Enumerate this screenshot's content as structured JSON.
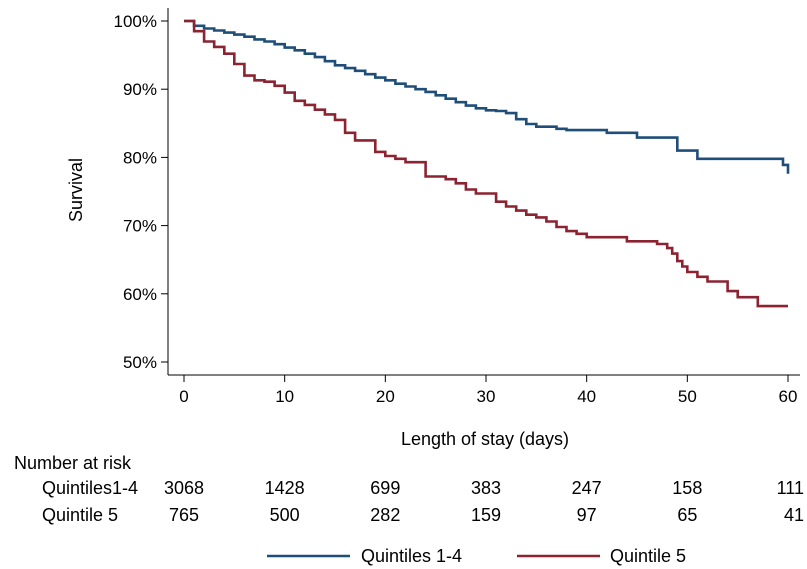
{
  "chart_data": {
    "type": "line",
    "xlabel": "Length of stay (days)",
    "ylabel": "Survival",
    "xlim": [
      0,
      60
    ],
    "ylim": [
      0.5,
      1.0
    ],
    "x_ticks": [
      0,
      10,
      20,
      30,
      40,
      50,
      60
    ],
    "x_tick_labels": [
      "0",
      "10",
      "20",
      "30",
      "40",
      "50",
      "60"
    ],
    "y_ticks": [
      0.5,
      0.6,
      0.7,
      0.8,
      0.9,
      1.0
    ],
    "y_tick_labels": [
      "50%",
      "60%",
      "70%",
      "80%",
      "90%",
      "100%"
    ],
    "grid": false,
    "legend_position": "bottom",
    "series": [
      {
        "name": "Quintiles 1-4",
        "color": "#1f4e79",
        "step": true,
        "points": [
          [
            0,
            1.0
          ],
          [
            1,
            0.993
          ],
          [
            2,
            0.989
          ],
          [
            3,
            0.986
          ],
          [
            4,
            0.983
          ],
          [
            5,
            0.98
          ],
          [
            6,
            0.977
          ],
          [
            7,
            0.973
          ],
          [
            8,
            0.97
          ],
          [
            9,
            0.966
          ],
          [
            10,
            0.961
          ],
          [
            11,
            0.957
          ],
          [
            12,
            0.952
          ],
          [
            13,
            0.947
          ],
          [
            14,
            0.941
          ],
          [
            15,
            0.935
          ],
          [
            16,
            0.931
          ],
          [
            17,
            0.927
          ],
          [
            18,
            0.922
          ],
          [
            19,
            0.917
          ],
          [
            20,
            0.913
          ],
          [
            21,
            0.908
          ],
          [
            22,
            0.904
          ],
          [
            23,
            0.9
          ],
          [
            24,
            0.896
          ],
          [
            25,
            0.891
          ],
          [
            26,
            0.886
          ],
          [
            27,
            0.881
          ],
          [
            28,
            0.876
          ],
          [
            29,
            0.872
          ],
          [
            30,
            0.869
          ],
          [
            31,
            0.868
          ],
          [
            32,
            0.865
          ],
          [
            33,
            0.856
          ],
          [
            34,
            0.849
          ],
          [
            35,
            0.845
          ],
          [
            37,
            0.842
          ],
          [
            38,
            0.84
          ],
          [
            42,
            0.836
          ],
          [
            45,
            0.829
          ],
          [
            49,
            0.81
          ],
          [
            51,
            0.798
          ],
          [
            59.5,
            0.789
          ],
          [
            60,
            0.776
          ]
        ]
      },
      {
        "name": "Quintile 5",
        "color": "#8b2331",
        "step": true,
        "points": [
          [
            0,
            1.0
          ],
          [
            1,
            0.985
          ],
          [
            2,
            0.97
          ],
          [
            3,
            0.962
          ],
          [
            4,
            0.952
          ],
          [
            5,
            0.937
          ],
          [
            6,
            0.92
          ],
          [
            7,
            0.913
          ],
          [
            8,
            0.911
          ],
          [
            9,
            0.905
          ],
          [
            10,
            0.895
          ],
          [
            11,
            0.883
          ],
          [
            12,
            0.877
          ],
          [
            13,
            0.87
          ],
          [
            14,
            0.863
          ],
          [
            15,
            0.855
          ],
          [
            16,
            0.836
          ],
          [
            17,
            0.825
          ],
          [
            19,
            0.808
          ],
          [
            20,
            0.802
          ],
          [
            21,
            0.798
          ],
          [
            22,
            0.793
          ],
          [
            24,
            0.772
          ],
          [
            26,
            0.768
          ],
          [
            27,
            0.762
          ],
          [
            28,
            0.753
          ],
          [
            29,
            0.747
          ],
          [
            31,
            0.735
          ],
          [
            32,
            0.728
          ],
          [
            33,
            0.722
          ],
          [
            34,
            0.716
          ],
          [
            35,
            0.712
          ],
          [
            36,
            0.706
          ],
          [
            37,
            0.698
          ],
          [
            38,
            0.692
          ],
          [
            39,
            0.688
          ],
          [
            40,
            0.683
          ],
          [
            44,
            0.677
          ],
          [
            47,
            0.673
          ],
          [
            48,
            0.667
          ],
          [
            48.5,
            0.659
          ],
          [
            49,
            0.648
          ],
          [
            49.5,
            0.64
          ],
          [
            50,
            0.632
          ],
          [
            51,
            0.625
          ],
          [
            52,
            0.618
          ],
          [
            54,
            0.604
          ],
          [
            55,
            0.595
          ],
          [
            57,
            0.582
          ]
        ]
      }
    ]
  },
  "risk_table": {
    "title": "Number at risk",
    "rows": [
      {
        "label": "Quintiles1-4",
        "values": [
          "3068",
          "1428",
          "699",
          "383",
          "247",
          "158",
          "111"
        ]
      },
      {
        "label": "Quintile 5",
        "values": [
          "765",
          "500",
          "282",
          "159",
          "97",
          "65",
          "41"
        ]
      }
    ]
  },
  "legend": {
    "items": [
      {
        "label": "Quintiles 1-4",
        "color": "#1f4e79"
      },
      {
        "label": "Quintile 5",
        "color": "#8b2331"
      }
    ]
  }
}
